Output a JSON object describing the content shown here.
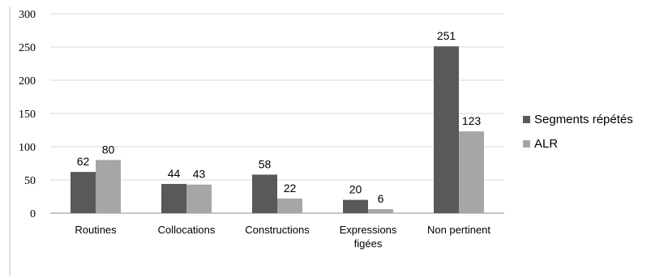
{
  "chart_data": {
    "type": "bar",
    "categories": [
      [
        "Routines"
      ],
      [
        "Collocations"
      ],
      [
        "Constructions"
      ],
      [
        "Expressions",
        "figées"
      ],
      [
        "Non pertinent"
      ]
    ],
    "series": [
      {
        "name": "Segments répétés",
        "values": [
          62,
          44,
          58,
          20,
          251
        ],
        "color": "#595959"
      },
      {
        "name": "ALR",
        "values": [
          80,
          43,
          22,
          6,
          123
        ],
        "color": "#a6a6a6"
      }
    ],
    "ylim": [
      0,
      300
    ],
    "yticks": [
      0,
      50,
      100,
      150,
      200,
      250,
      300
    ],
    "grid": true,
    "legend": "right"
  }
}
